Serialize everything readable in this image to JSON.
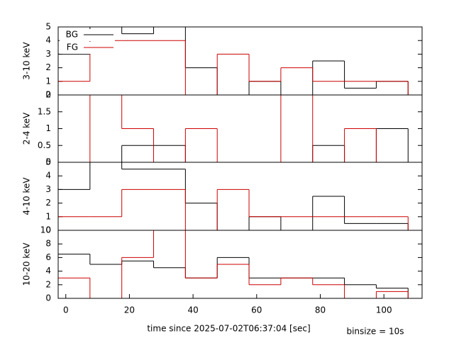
{
  "chart_data": [
    {
      "type": "histogram",
      "ylabel": "3-10 keV",
      "legend": "upper left",
      "bins": [
        -2.4,
        7.6,
        17.6,
        27.6,
        37.6,
        47.6,
        57.6,
        67.6,
        77.6,
        87.6,
        97.6,
        107.6
      ],
      "xlim": [
        -2.4,
        112
      ],
      "ylim": [
        0,
        5
      ],
      "yticks": [
        0,
        1,
        2,
        3,
        4,
        5
      ],
      "series": [
        {
          "name": "BG",
          "color": "#000000",
          "values": [
            3,
            5.5,
            4.5,
            5.5,
            2,
            0,
            1,
            0,
            2.5,
            0.5,
            1
          ]
        },
        {
          "name": "FG",
          "color": "#cc0000",
          "values": [
            1,
            4,
            4,
            4,
            0,
            3,
            1,
            2,
            1,
            1,
            1
          ]
        }
      ]
    },
    {
      "type": "histogram",
      "ylabel": "2-4 keV",
      "bins": [
        -2.4,
        7.6,
        17.6,
        27.6,
        37.6,
        47.6,
        57.6,
        67.6,
        77.6,
        87.6,
        97.6,
        107.6
      ],
      "xlim": [
        -2.4,
        112
      ],
      "ylim": [
        0,
        2
      ],
      "yticks": [
        0,
        0.5,
        1,
        1.5,
        2
      ],
      "series": [
        {
          "color": "#000000",
          "values": [
            0,
            0,
            0.5,
            0.5,
            0,
            0,
            0,
            0,
            0.5,
            0,
            1
          ]
        },
        {
          "color": "#cc0000",
          "values": [
            0,
            2,
            1,
            0,
            1,
            0,
            0,
            2,
            0,
            1,
            0
          ]
        }
      ]
    },
    {
      "type": "histogram",
      "ylabel": "4-10 keV",
      "bins": [
        -2.4,
        7.6,
        17.6,
        27.6,
        37.6,
        47.6,
        57.6,
        67.6,
        77.6,
        87.6,
        97.6,
        107.6
      ],
      "xlim": [
        -2.4,
        112
      ],
      "ylim": [
        0,
        5
      ],
      "yticks": [
        0,
        1,
        2,
        3,
        4,
        5
      ],
      "series": [
        {
          "color": "#000000",
          "values": [
            3,
            5.5,
            4.5,
            4.5,
            2,
            0,
            1,
            0,
            2.5,
            0.5,
            0.5
          ]
        },
        {
          "color": "#cc0000",
          "values": [
            1,
            1,
            3,
            3,
            0,
            3,
            1,
            1,
            1,
            1,
            1
          ]
        }
      ]
    },
    {
      "type": "histogram",
      "ylabel": "10-20 keV",
      "xlabel": "time since 2025-07-02T06:37:04 [sec]",
      "annotation": "binsize = 10s",
      "bins": [
        -2.4,
        7.6,
        17.6,
        27.6,
        37.6,
        47.6,
        57.6,
        67.6,
        77.6,
        87.6,
        97.6,
        107.6
      ],
      "xlim": [
        -2.4,
        112
      ],
      "xticks": [
        0,
        20,
        40,
        60,
        80,
        100
      ],
      "ylim": [
        0,
        10
      ],
      "yticks": [
        0,
        2,
        4,
        6,
        8,
        10
      ],
      "series": [
        {
          "color": "#000000",
          "values": [
            6.5,
            5,
            5.5,
            4.5,
            3,
            6,
            3,
            3,
            3,
            2,
            1.5
          ]
        },
        {
          "color": "#cc0000",
          "values": [
            3,
            0,
            6,
            10,
            3,
            5,
            2,
            3,
            2,
            0,
            1
          ]
        }
      ]
    }
  ]
}
